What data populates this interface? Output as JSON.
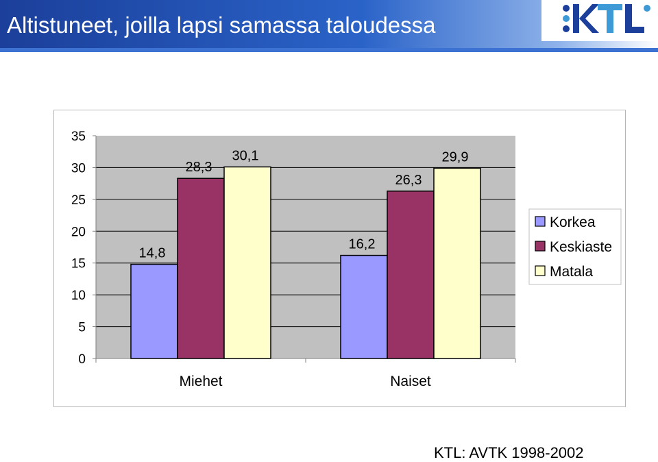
{
  "header": {
    "title": "Altistuneet, joilla lapsi samassa taloudessa",
    "logo_text": "KTL",
    "bar_color": "#2a5bbf"
  },
  "footer": {
    "source": "KTL: AVTK 1998-2002"
  },
  "chart_data": {
    "type": "bar",
    "title": "",
    "xlabel": "",
    "ylabel": "",
    "categories": [
      "Miehet",
      "Naiset"
    ],
    "series": [
      {
        "name": "Korkea",
        "values": [
          14.8,
          16.2
        ],
        "labels": [
          "14,8",
          "16,2"
        ],
        "color": "#9999ff"
      },
      {
        "name": "Keskiaste",
        "values": [
          28.3,
          26.3
        ],
        "labels": [
          "28,3",
          "26,3"
        ],
        "color": "#993366"
      },
      {
        "name": "Matala",
        "values": [
          30.1,
          29.9
        ],
        "labels": [
          "30,1",
          "29,9"
        ],
        "color": "#ffffcc"
      }
    ],
    "yticks": [
      "0",
      "5",
      "10",
      "15",
      "20",
      "25",
      "30",
      "35"
    ],
    "ylim": [
      0,
      35
    ],
    "grid": true,
    "plot_background": "#c0c0c0",
    "legend_position": "right"
  }
}
